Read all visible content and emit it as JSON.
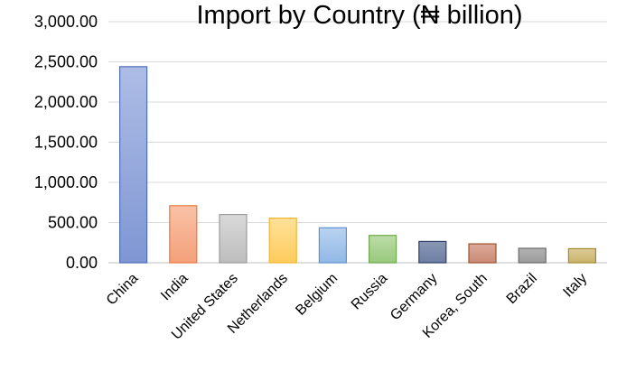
{
  "chart_data": {
    "type": "bar",
    "title": "Import by Country (₦ billion)",
    "xlabel": "",
    "ylabel": "",
    "categories": [
      "China",
      "India",
      "United States",
      "Netherlands",
      "Belgium",
      "Russia",
      "Germany",
      "Korea, South",
      "Brazil",
      "Italy"
    ],
    "values": [
      2440,
      710,
      600,
      555,
      435,
      340,
      265,
      235,
      180,
      175
    ],
    "ylim": [
      0,
      3000
    ],
    "yticks": [
      "0.00",
      "500.00",
      "1,000.00",
      "1,500.00",
      "2,000.00",
      "2,500.00",
      "3,000.00"
    ],
    "grid": true,
    "legend": "none",
    "colors": [
      {
        "top": "#aebde6",
        "bottom": "#7f96d3",
        "stroke": "#4f6fb8"
      },
      {
        "top": "#f9c2a7",
        "bottom": "#f4a07a",
        "stroke": "#e87a3f"
      },
      {
        "top": "#d9d9d9",
        "bottom": "#bdbdbd",
        "stroke": "#9c9c9c"
      },
      {
        "top": "#ffe19a",
        "bottom": "#ffcb5c",
        "stroke": "#f2b632"
      },
      {
        "top": "#b9d3f0",
        "bottom": "#92b8e6",
        "stroke": "#5f92d3"
      },
      {
        "top": "#bcdca8",
        "bottom": "#98c97d",
        "stroke": "#6faa4b"
      },
      {
        "top": "#8a97b5",
        "bottom": "#6d7ea2",
        "stroke": "#2f3f6b"
      },
      {
        "top": "#dca999",
        "bottom": "#c98a76",
        "stroke": "#a0512d"
      },
      {
        "top": "#b3b3b3",
        "bottom": "#9a9a9a",
        "stroke": "#6b6b6b"
      },
      {
        "top": "#dccb97",
        "bottom": "#c9b36b",
        "stroke": "#a8892a"
      }
    ]
  }
}
